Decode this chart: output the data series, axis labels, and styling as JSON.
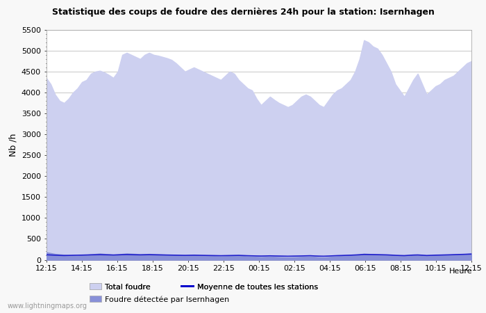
{
  "title": "Statistique des coups de foudre des dernières 24h pour la station: Isernhagen",
  "ylabel": "Nb /h",
  "xlabel": "Heure",
  "ylim": [
    0,
    5500
  ],
  "yticks": [
    0,
    500,
    1000,
    1500,
    2000,
    2500,
    3000,
    3500,
    4000,
    4500,
    5000,
    5500
  ],
  "xtick_labels": [
    "12:15",
    "14:15",
    "16:15",
    "18:15",
    "20:15",
    "22:15",
    "00:15",
    "02:15",
    "04:15",
    "06:15",
    "08:15",
    "10:15",
    "12:15"
  ],
  "watermark": "www.lightningmaps.org",
  "legend": [
    {
      "label": "Total foudre",
      "color": "#cdd0f0",
      "type": "fill"
    },
    {
      "label": "Moyenne de toutes les stations",
      "color": "#0000cc",
      "type": "line"
    },
    {
      "label": "Foudre détectée par Isernhagen",
      "color": "#8890d8",
      "type": "fill"
    }
  ],
  "bg_color": "#f8f8f8",
  "plot_bg_color": "#ffffff",
  "grid_color": "#cccccc",
  "total_foudre_color": "#cdd0f0",
  "detection_color": "#8890d8",
  "mean_line_color": "#2020cc",
  "x_values": [
    0,
    1,
    2,
    3,
    4,
    5,
    6,
    7,
    8,
    9,
    10,
    11,
    12,
    13,
    14,
    15,
    16,
    17,
    18,
    19,
    20,
    21,
    22,
    23,
    24,
    25,
    26,
    27,
    28,
    29,
    30,
    31,
    32,
    33,
    34,
    35,
    36,
    37,
    38,
    39,
    40,
    41,
    42,
    43,
    44,
    45,
    46,
    47,
    48,
    49,
    50,
    51,
    52,
    53,
    54,
    55,
    56,
    57,
    58,
    59,
    60,
    61,
    62,
    63,
    64,
    65,
    66,
    67,
    68,
    69,
    70,
    71,
    72,
    73,
    74,
    75,
    76,
    77,
    78,
    79,
    80,
    81,
    82,
    83,
    84,
    85,
    86,
    87,
    88,
    89,
    90,
    91,
    92,
    93,
    94,
    95
  ],
  "total_foudre": [
    4350,
    4200,
    3950,
    3800,
    3750,
    3850,
    4000,
    4100,
    4250,
    4300,
    4450,
    4500,
    4520,
    4480,
    4420,
    4350,
    4500,
    4900,
    4950,
    4900,
    4850,
    4800,
    4900,
    4950,
    4900,
    4880,
    4850,
    4820,
    4780,
    4700,
    4600,
    4500,
    4550,
    4600,
    4550,
    4500,
    4450,
    4400,
    4350,
    4300,
    4400,
    4500,
    4450,
    4300,
    4200,
    4100,
    4050,
    3850,
    3700,
    3800,
    3900,
    3820,
    3750,
    3700,
    3650,
    3700,
    3800,
    3900,
    3950,
    3900,
    3800,
    3700,
    3650,
    3800,
    3950,
    4050,
    4100,
    4200,
    4300,
    4500,
    4800,
    5250,
    5200,
    5100,
    5050,
    4900,
    4700,
    4500,
    4200,
    4050,
    3900,
    4100,
    4300,
    4450,
    4200,
    3950,
    4050,
    4150,
    4200,
    4300,
    4350,
    4400,
    4500,
    4600,
    4700,
    4750
  ],
  "detection": [
    180,
    160,
    140,
    130,
    120,
    110,
    100,
    95,
    110,
    120,
    130,
    140,
    150,
    140,
    130,
    120,
    130,
    140,
    150,
    145,
    140,
    130,
    135,
    140,
    135,
    130,
    125,
    120,
    115,
    110,
    105,
    100,
    105,
    110,
    105,
    100,
    95,
    90,
    85,
    80,
    85,
    90,
    95,
    100,
    90,
    80,
    75,
    70,
    65,
    70,
    75,
    70,
    65,
    60,
    55,
    60,
    65,
    70,
    75,
    80,
    70,
    60,
    55,
    65,
    75,
    85,
    90,
    100,
    110,
    120,
    130,
    145,
    140,
    135,
    130,
    125,
    120,
    110,
    100,
    95,
    90,
    100,
    110,
    115,
    105,
    95,
    100,
    105,
    110,
    115,
    120,
    125,
    130,
    135,
    140,
    150
  ],
  "mean_line": [
    120,
    115,
    110,
    105,
    102,
    105,
    108,
    110,
    112,
    115,
    118,
    120,
    122,
    120,
    118,
    115,
    118,
    122,
    125,
    122,
    120,
    118,
    120,
    122,
    120,
    118,
    116,
    114,
    112,
    110,
    108,
    106,
    108,
    110,
    108,
    106,
    104,
    102,
    100,
    98,
    100,
    102,
    104,
    106,
    102,
    98,
    95,
    92,
    90,
    92,
    95,
    92,
    90,
    88,
    86,
    88,
    90,
    92,
    95,
    98,
    92,
    88,
    86,
    90,
    95,
    100,
    103,
    107,
    110,
    115,
    120,
    128,
    126,
    124,
    122,
    120,
    118,
    113,
    107,
    103,
    100,
    107,
    113,
    116,
    110,
    103,
    107,
    111,
    113,
    116,
    119,
    122,
    126,
    129,
    133,
    137
  ]
}
